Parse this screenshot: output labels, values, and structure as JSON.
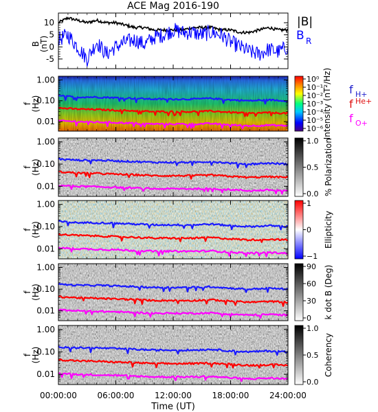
{
  "title": "ACE Mag 2016-190",
  "x_axis": {
    "label": "Time (UT)",
    "ticks": [
      "00:00:00",
      "06:00:00",
      "12:00:00",
      "18:00:00",
      "24:00:00"
    ]
  },
  "legends": {
    "field": [
      {
        "label": "|B|",
        "color": "#000000"
      },
      {
        "label": "B",
        "sub": "R",
        "color": "#0000ff"
      }
    ],
    "gyro": [
      {
        "label": "f",
        "sub": "H+",
        "color": "#2222cc"
      },
      {
        "label": "f",
        "sup": "He+",
        "color": "#e01010"
      },
      {
        "label": "f",
        "sub": "O+",
        "color": "#ff00ff"
      }
    ]
  },
  "colors": {
    "bmag": "#000000",
    "br": "#0000ff",
    "fH": "#1a1aff",
    "fHe": "#ff0000",
    "fO": "#ff00ff"
  },
  "chart_data": [
    {
      "type": "line",
      "ylabel": "B (nT)",
      "ylim": [
        -9,
        14
      ],
      "yticks": [
        "10",
        "5",
        "0",
        "-5"
      ],
      "x_hours": [
        0,
        1,
        2,
        3,
        4,
        5,
        6,
        7,
        8,
        9,
        10,
        11,
        12,
        13,
        14,
        15,
        16,
        17,
        18,
        19,
        20,
        21,
        22,
        23,
        24
      ],
      "series": [
        {
          "name": "|B|",
          "values": [
            10,
            12,
            11,
            10,
            11,
            10,
            10,
            9,
            8,
            8,
            7,
            7,
            7,
            7,
            8,
            8,
            8,
            7,
            7,
            6,
            6,
            7,
            8,
            7,
            7
          ]
        },
        {
          "name": "B_R",
          "values": [
            3,
            5,
            0,
            -5,
            2,
            -3,
            0,
            2,
            3,
            1,
            4,
            5,
            7,
            6,
            6,
            5,
            6,
            5,
            2,
            0,
            -2,
            -3,
            -1,
            -2,
            0
          ]
        }
      ]
    },
    {
      "type": "heatmap",
      "ylabel": "f (Hz)",
      "yticks": [
        "1.00",
        "0.10",
        "0.01"
      ],
      "colorbar": {
        "label": "Intensity (nT²/Hz)",
        "ticks": [
          "10⁰",
          "10⁻¹",
          "10⁻²",
          "10⁻³",
          "10⁻⁴",
          "10⁻⁵",
          "10⁻⁶"
        ]
      }
    },
    {
      "type": "heatmap",
      "ylabel": "f (Hz)",
      "yticks": [
        "1.00",
        "0.10",
        "0.01"
      ],
      "colorbar": {
        "label": "% Polarization",
        "ticks": [
          "1.0",
          "0.5",
          "0.0"
        ]
      }
    },
    {
      "type": "heatmap",
      "ylabel": "f (Hz)",
      "yticks": [
        "1.00",
        "0.10",
        "0.01"
      ],
      "colorbar": {
        "label": "Ellipticity",
        "ticks": [
          "1",
          "0",
          "−1"
        ]
      }
    },
    {
      "type": "heatmap",
      "ylabel": "f (Hz)",
      "yticks": [
        "1.00",
        "0.10",
        "0.01"
      ],
      "colorbar": {
        "label": "k dot B (Deg)",
        "ticks": [
          "90",
          "60",
          "30",
          "0"
        ]
      }
    },
    {
      "type": "heatmap",
      "ylabel": "f (Hz)",
      "yticks": [
        "1.00",
        "0.10",
        "0.01"
      ],
      "colorbar": {
        "label": "Coherency",
        "ticks": [
          "1.0",
          "0.5",
          "0.0"
        ]
      }
    }
  ],
  "gyro_lines": {
    "x_hours": [
      0,
      2,
      4,
      6,
      8,
      10,
      12,
      14,
      16,
      18,
      20,
      22,
      24
    ],
    "fH_hz": [
      0.17,
      0.15,
      0.15,
      0.14,
      0.13,
      0.12,
      0.12,
      0.12,
      0.13,
      0.11,
      0.1,
      0.11,
      0.1
    ],
    "fHe_hz": [
      0.045,
      0.04,
      0.038,
      0.035,
      0.033,
      0.03,
      0.03,
      0.03,
      0.032,
      0.028,
      0.025,
      0.027,
      0.025
    ],
    "fO_hz": [
      0.011,
      0.01,
      0.0095,
      0.009,
      0.0083,
      0.0077,
      0.0077,
      0.0077,
      0.008,
      0.007,
      0.0063,
      0.0068,
      0.0063
    ]
  }
}
